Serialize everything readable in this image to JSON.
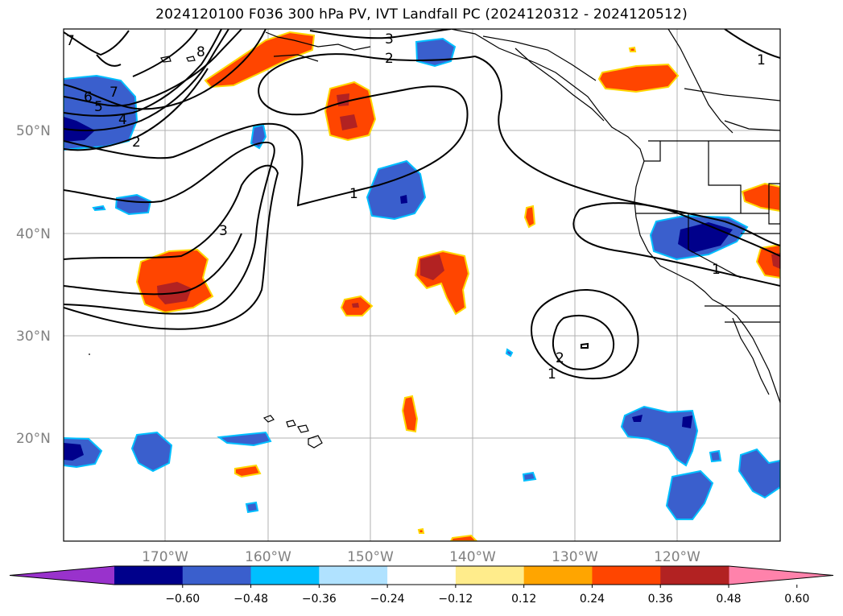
{
  "title": "2024120100 F036 300 hPa PV, IVT Landfall PC (2024120312 - 2024120512)",
  "map": {
    "lat_labels": [
      "50°N",
      "40°N",
      "30°N",
      "20°N"
    ],
    "lon_labels": [
      "170°W",
      "160°W",
      "150°W",
      "140°W",
      "130°W",
      "120°W"
    ],
    "contour_labels": [
      "1",
      "1",
      "1",
      "1",
      "2",
      "2",
      "2",
      "3",
      "3",
      "4",
      "5",
      "6",
      "7",
      "8",
      "7"
    ]
  },
  "colorbar": {
    "colors": [
      "#9932cc",
      "#00008b",
      "#3a5fcd",
      "#00bfff",
      "#b0e2ff",
      "#ffffff",
      "#ffec8b",
      "#ffa500",
      "#ff4500",
      "#b22222",
      "#ff82ab"
    ],
    "ticks": [
      "−0.60",
      "−0.48",
      "−0.36",
      "−0.24",
      "−0.12",
      "0.12",
      "0.24",
      "0.36",
      "0.48",
      "0.60"
    ]
  },
  "colors": {
    "grid": "#b0b0b0",
    "contour": "#000000",
    "coast": "#000000"
  }
}
